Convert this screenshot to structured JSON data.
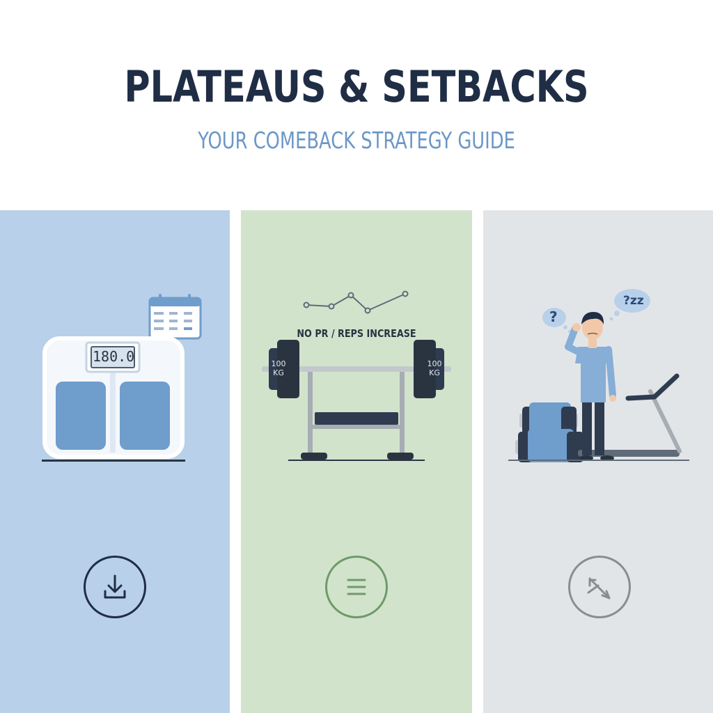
{
  "header": {
    "title": "PLATEAUS & SETBACKS",
    "subtitle": "YOUR COMEBACK STRATEGY GUIDE"
  },
  "panels": [
    {
      "scale_readout": "180.0",
      "icon": "download-icon",
      "background": "#b8d0e9"
    },
    {
      "chart_label": "NO PR / REPS INCREASE",
      "plate_left": "100 KG",
      "plate_right": "100 KG",
      "icon": "menu-lines-icon",
      "background": "#d2e3cc"
    },
    {
      "bubble_left": "?",
      "bubble_right": "?zz",
      "icon": "crossed-arrows-icon",
      "background": "#e2e5e8"
    }
  ],
  "colors": {
    "title": "#1f2d45",
    "subtitle": "#6b97c7",
    "accent_blue": "#6f9dcc",
    "dark_navy": "#2a3441"
  }
}
